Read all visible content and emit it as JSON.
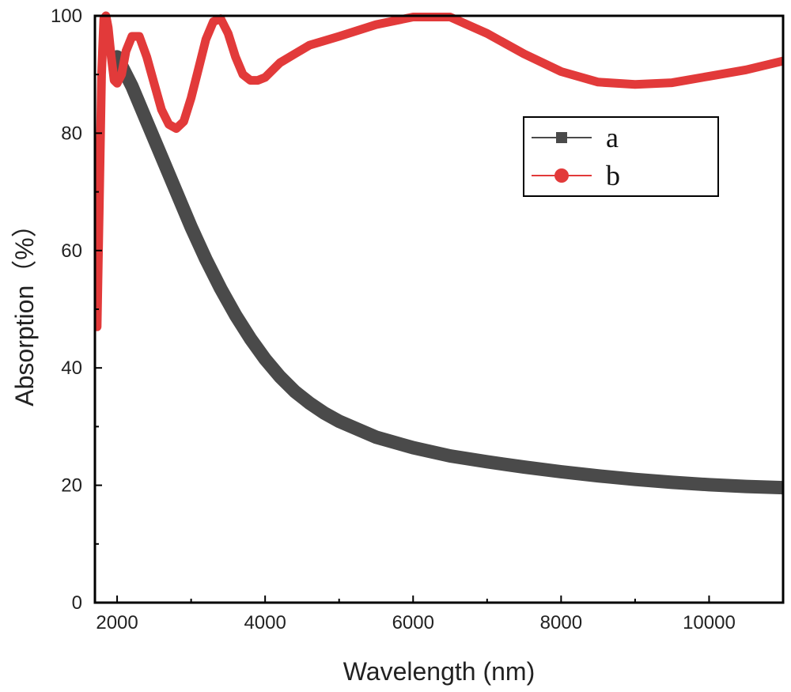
{
  "chart_data": {
    "type": "line",
    "title": "",
    "xlabel": "Wavelength (nm)",
    "ylabel": "Absorption（%）",
    "xlim": [
      1700,
      11000
    ],
    "ylim": [
      0,
      100
    ],
    "xticks": [
      2000,
      4000,
      6000,
      8000,
      10000
    ],
    "yticks": [
      0,
      20,
      40,
      60,
      80,
      100
    ],
    "grid": false,
    "legend_position": "upper-right",
    "series": [
      {
        "name": "a",
        "color": "#4a4a4a",
        "marker": "square",
        "points": [
          [
            2000,
            93
          ],
          [
            2200,
            88
          ],
          [
            2400,
            82
          ],
          [
            2600,
            76
          ],
          [
            2800,
            70
          ],
          [
            3000,
            64
          ],
          [
            3200,
            58.5
          ],
          [
            3400,
            53.5
          ],
          [
            3600,
            49
          ],
          [
            3800,
            45
          ],
          [
            4000,
            41.5
          ],
          [
            4200,
            38.5
          ],
          [
            4400,
            36
          ],
          [
            4600,
            34
          ],
          [
            4800,
            32.3
          ],
          [
            5000,
            30.9
          ],
          [
            5500,
            28.2
          ],
          [
            6000,
            26.4
          ],
          [
            6500,
            25
          ],
          [
            7000,
            24
          ],
          [
            7500,
            23.1
          ],
          [
            8000,
            22.3
          ],
          [
            8500,
            21.6
          ],
          [
            9000,
            21
          ],
          [
            9500,
            20.5
          ],
          [
            10000,
            20.1
          ],
          [
            10500,
            19.8
          ],
          [
            11000,
            19.6
          ]
        ]
      },
      {
        "name": "b",
        "color": "#e23a3a",
        "marker": "circle",
        "points": [
          [
            1730,
            47
          ],
          [
            1760,
            68
          ],
          [
            1790,
            90
          ],
          [
            1820,
            99.5
          ],
          [
            1850,
            100
          ],
          [
            1880,
            98
          ],
          [
            1920,
            93
          ],
          [
            1960,
            89
          ],
          [
            2000,
            88.5
          ],
          [
            2060,
            90
          ],
          [
            2120,
            94
          ],
          [
            2200,
            96.5
          ],
          [
            2300,
            96.5
          ],
          [
            2400,
            93
          ],
          [
            2500,
            88.5
          ],
          [
            2600,
            84
          ],
          [
            2700,
            81.5
          ],
          [
            2800,
            80.8
          ],
          [
            2900,
            82
          ],
          [
            3000,
            86
          ],
          [
            3100,
            91
          ],
          [
            3200,
            96
          ],
          [
            3300,
            99
          ],
          [
            3400,
            99.5
          ],
          [
            3500,
            97
          ],
          [
            3600,
            93
          ],
          [
            3700,
            90
          ],
          [
            3800,
            89
          ],
          [
            3900,
            89
          ],
          [
            4000,
            89.5
          ],
          [
            4200,
            92
          ],
          [
            4400,
            93.5
          ],
          [
            4600,
            95
          ],
          [
            5000,
            96.5
          ],
          [
            5500,
            98.5
          ],
          [
            6000,
            99.8
          ],
          [
            6500,
            99.8
          ],
          [
            7000,
            97
          ],
          [
            7500,
            93.5
          ],
          [
            8000,
            90.5
          ],
          [
            8500,
            88.7
          ],
          [
            9000,
            88.3
          ],
          [
            9500,
            88.6
          ],
          [
            10000,
            89.7
          ],
          [
            10500,
            90.8
          ],
          [
            11000,
            92.3
          ]
        ]
      }
    ]
  }
}
